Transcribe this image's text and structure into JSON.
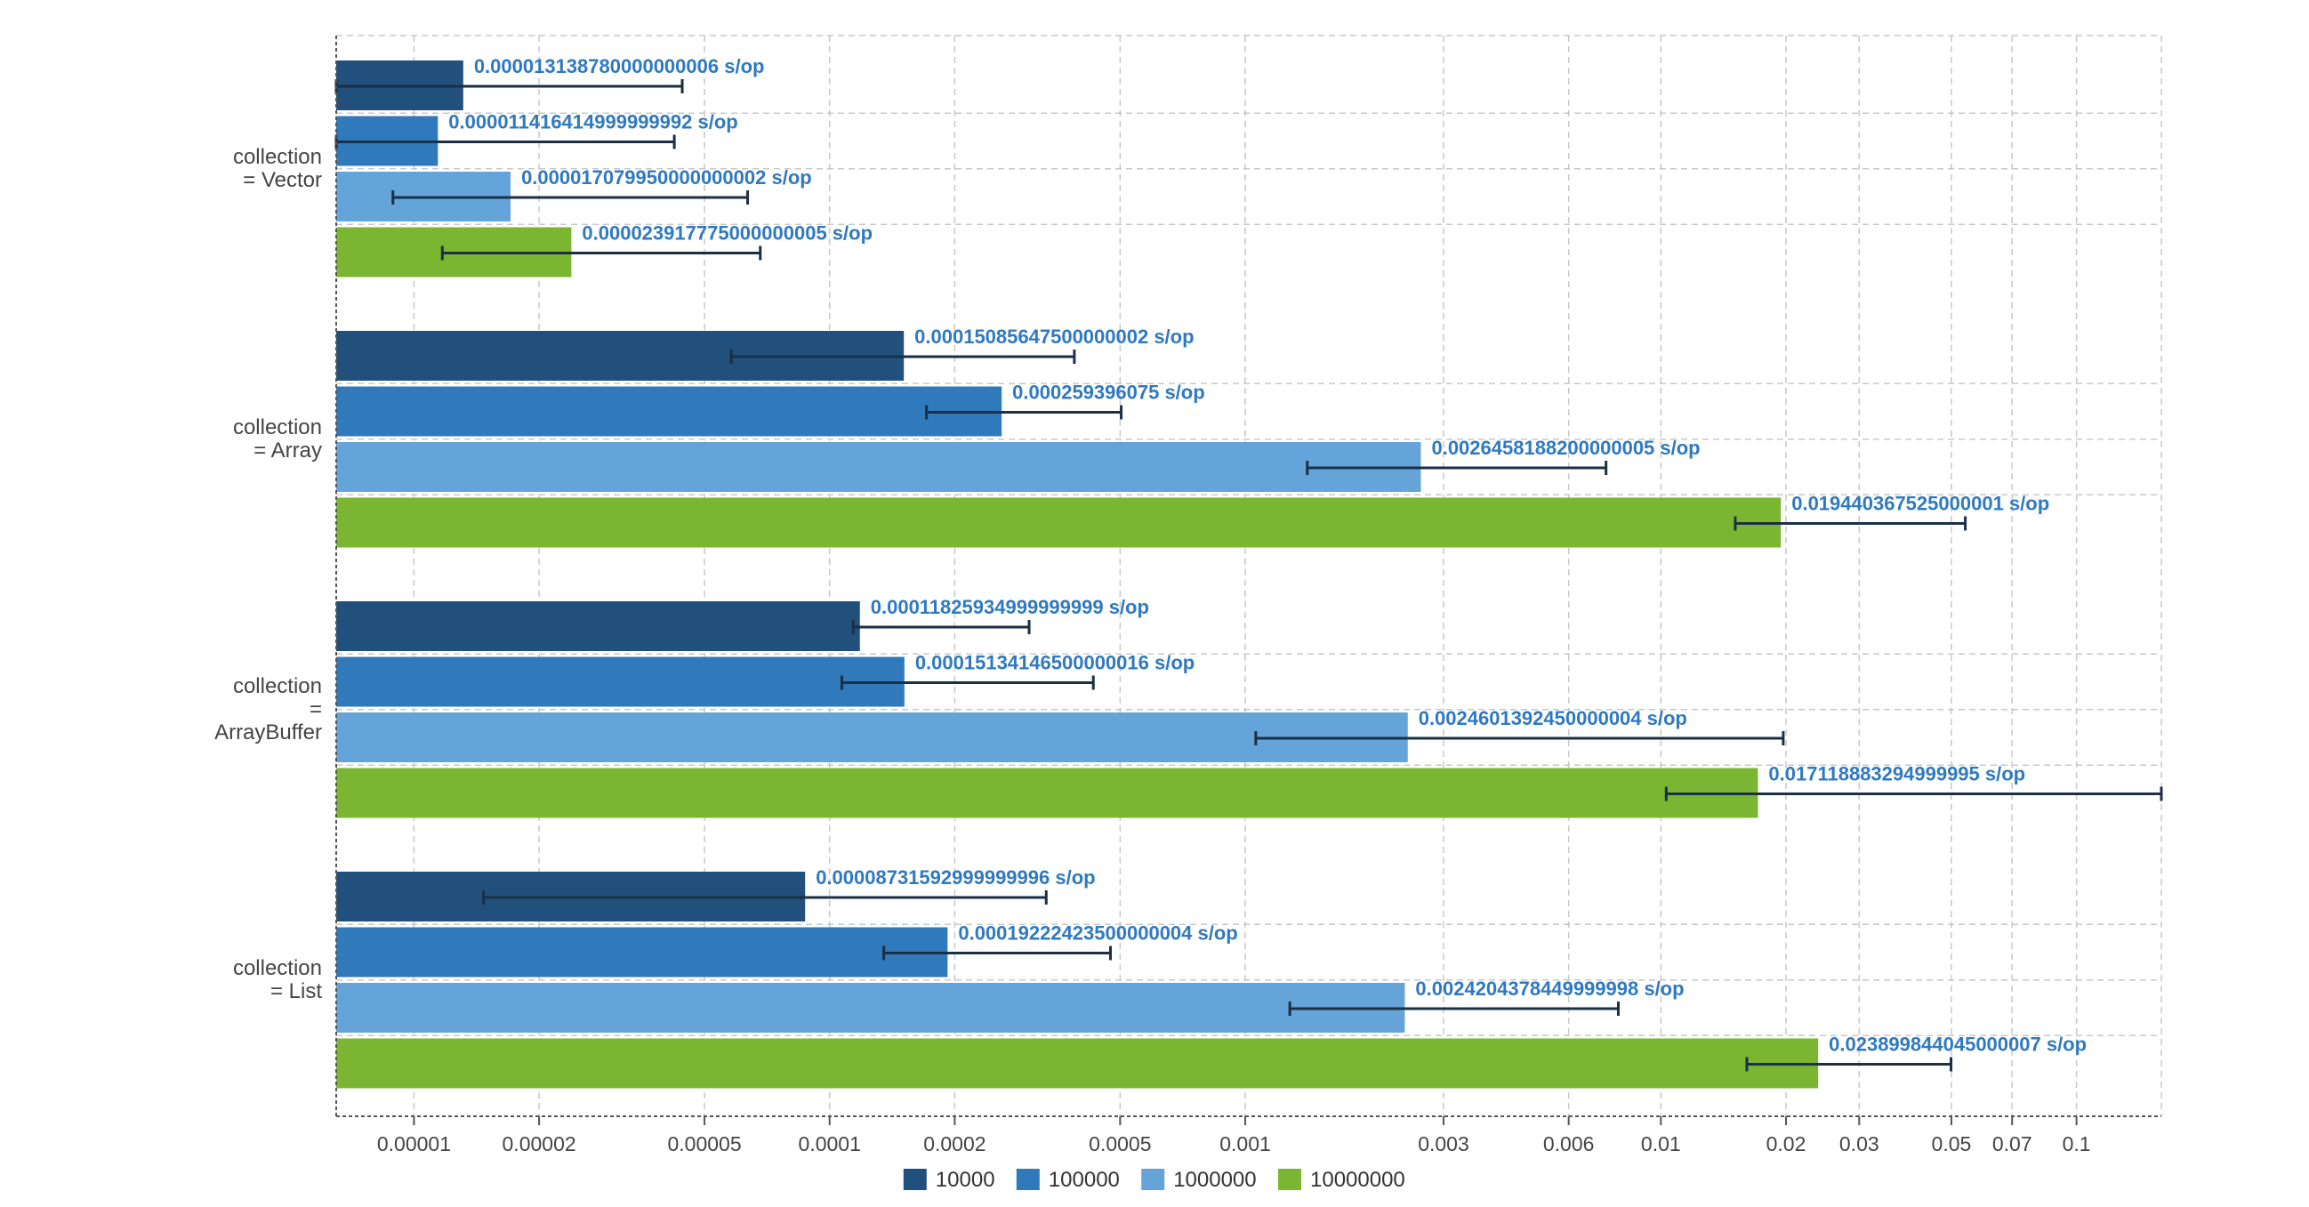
{
  "chart_data": {
    "type": "bar",
    "orientation": "horizontal",
    "x_scale": "log",
    "xlim": [
      6.5e-06,
      0.16
    ],
    "grid": true,
    "legend_position": "bottom",
    "categories": [
      [
        "collection",
        "= Vector"
      ],
      [
        "collection",
        "= Array"
      ],
      [
        "collection",
        "=",
        "ArrayBuffer"
      ],
      [
        "collection",
        "= List"
      ]
    ],
    "x_ticks": [
      1e-05,
      2e-05,
      5e-05,
      0.0001,
      0.0002,
      0.0005,
      0.001,
      0.003,
      0.006,
      0.01,
      0.02,
      0.03,
      0.05,
      0.07,
      0.1
    ],
    "x_tick_labels": [
      "0.00001",
      "0.00002",
      "0.00005",
      "0.0001",
      "0.0002",
      "0.0005",
      "0.001",
      "0.003",
      "0.006",
      "0.01",
      "0.02",
      "0.03",
      "0.05",
      "0.07",
      "0.1"
    ],
    "series": [
      {
        "name": "10000",
        "color": "#22507c",
        "values": [
          1.3138780000000006e-05,
          0.00015085647500000002,
          0.00011825934999999999,
          8.731592999999996e-05
        ],
        "labels": [
          "0.000013138780000000006 s/op",
          "0.00015085647500000002 s/op",
          "0.00011825934999999999 s/op",
          "0.00008731592999999996 s/op"
        ],
        "error_low": [
          6.5e-06,
          5.8e-05,
          0.000114,
          1.47e-05
        ],
        "error_high": [
          4.42e-05,
          0.000388,
          0.000302,
          0.000332
        ]
      },
      {
        "name": "100000",
        "color": "#3079bb",
        "values": [
          1.1416414999999992e-05,
          0.000259396075,
          0.00015134146500000016,
          0.00019222423500000004
        ],
        "labels": [
          "0.000011416414999999992 s/op",
          "0.000259396075 s/op",
          "0.00015134146500000016 s/op",
          "0.00019222423500000004 s/op"
        ],
        "error_low": [
          6.5e-06,
          0.000171,
          0.000107,
          0.000135
        ],
        "error_high": [
          4.23e-05,
          0.000503,
          0.000431,
          0.000474
        ]
      },
      {
        "name": "1000000",
        "color": "#64a4d9",
        "values": [
          1.7079950000000002e-05,
          0.0026458188200000005,
          0.0024601392450000004,
          0.0024204378449999998
        ],
        "labels": [
          "0.000017079950000000002 s/op",
          "0.0026458188200000005 s/op",
          "0.0024601392450000004 s/op",
          "0.0024204378449999998 s/op"
        ],
        "error_low": [
          8.9e-06,
          0.00141,
          0.00106,
          0.00128
        ],
        "error_high": [
          6.35e-05,
          0.00738,
          0.0197,
          0.0079
        ]
      },
      {
        "name": "10000000",
        "color": "#7ab632",
        "values": [
          2.3917775000000005e-05,
          0.019440367525000002,
          0.017118883294999995,
          0.023899844045000007
        ],
        "labels": [
          "0.000023917775000000005 s/op",
          "0.019440367525000001 s/op",
          "0.017118883294999995 s/op",
          "0.023899844045000007 s/op"
        ],
        "error_low": [
          1.17e-05,
          0.0151,
          0.0103,
          0.0161
        ],
        "error_high": [
          6.81e-05,
          0.054,
          0.16,
          0.0499
        ]
      }
    ]
  }
}
